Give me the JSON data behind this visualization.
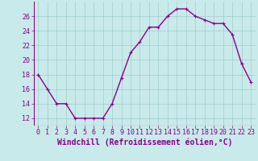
{
  "x": [
    0,
    1,
    2,
    3,
    4,
    5,
    6,
    7,
    8,
    9,
    10,
    11,
    12,
    13,
    14,
    15,
    16,
    17,
    18,
    19,
    20,
    21,
    22,
    23
  ],
  "y": [
    18,
    16,
    14,
    14,
    12,
    12,
    12,
    12,
    14,
    17.5,
    21,
    22.5,
    24.5,
    24.5,
    26,
    27,
    27,
    26,
    25.5,
    25,
    25,
    23.5,
    19.5,
    17
  ],
  "line_color": "#880088",
  "marker": "+",
  "marker_size": 3,
  "bg_color": "#c8eaea",
  "grid_color": "#a0cccc",
  "xlabel": "Windchill (Refroidissement éolien,°C)",
  "xlabel_fontsize": 7,
  "tick_label_fontsize": 6,
  "ylim": [
    11,
    28
  ],
  "xlim": [
    -0.5,
    23.5
  ],
  "yticks": [
    12,
    14,
    16,
    18,
    20,
    22,
    24,
    26
  ],
  "xticks": [
    0,
    1,
    2,
    3,
    4,
    5,
    6,
    7,
    8,
    9,
    10,
    11,
    12,
    13,
    14,
    15,
    16,
    17,
    18,
    19,
    20,
    21,
    22,
    23
  ],
  "linewidth": 1.0,
  "bar_color": "#660066"
}
